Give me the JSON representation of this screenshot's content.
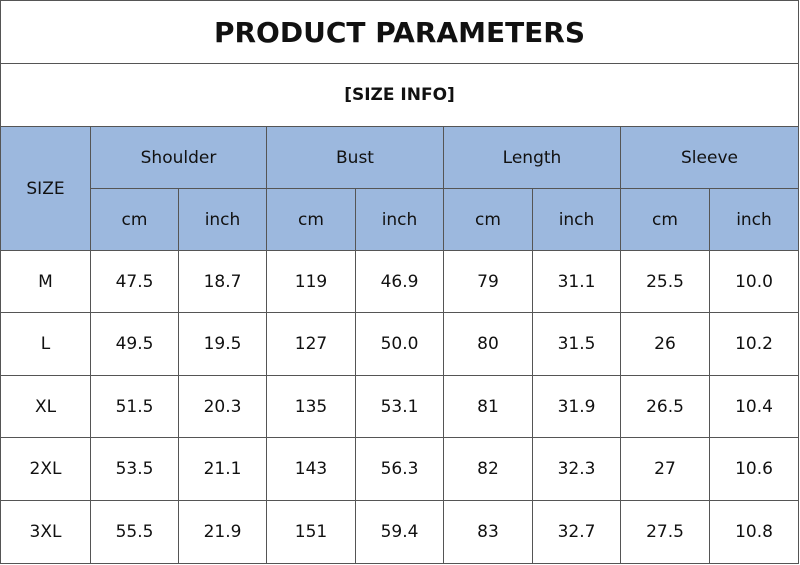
{
  "header": {
    "title": "PRODUCT PARAMETERS",
    "subtitle": "[SIZE INFO]"
  },
  "table": {
    "size_label": "SIZE",
    "groups": [
      "Shoulder",
      "Bust",
      "Length",
      "Sleeve"
    ],
    "units": [
      "cm",
      "inch"
    ],
    "rows": [
      [
        "M",
        "47.5",
        "18.7",
        "119",
        "46.9",
        "79",
        "31.1",
        "25.5",
        "10.0"
      ],
      [
        "L",
        "49.5",
        "19.5",
        "127",
        "50.0",
        "80",
        "31.5",
        "26",
        "10.2"
      ],
      [
        "XL",
        "51.5",
        "20.3",
        "135",
        "53.1",
        "81",
        "31.9",
        "26.5",
        "10.4"
      ],
      [
        "2XL",
        "53.5",
        "21.1",
        "143",
        "56.3",
        "82",
        "32.3",
        "27",
        "10.6"
      ],
      [
        "3XL",
        "55.5",
        "21.9",
        "151",
        "59.4",
        "83",
        "32.7",
        "27.5",
        "10.8"
      ]
    ]
  }
}
